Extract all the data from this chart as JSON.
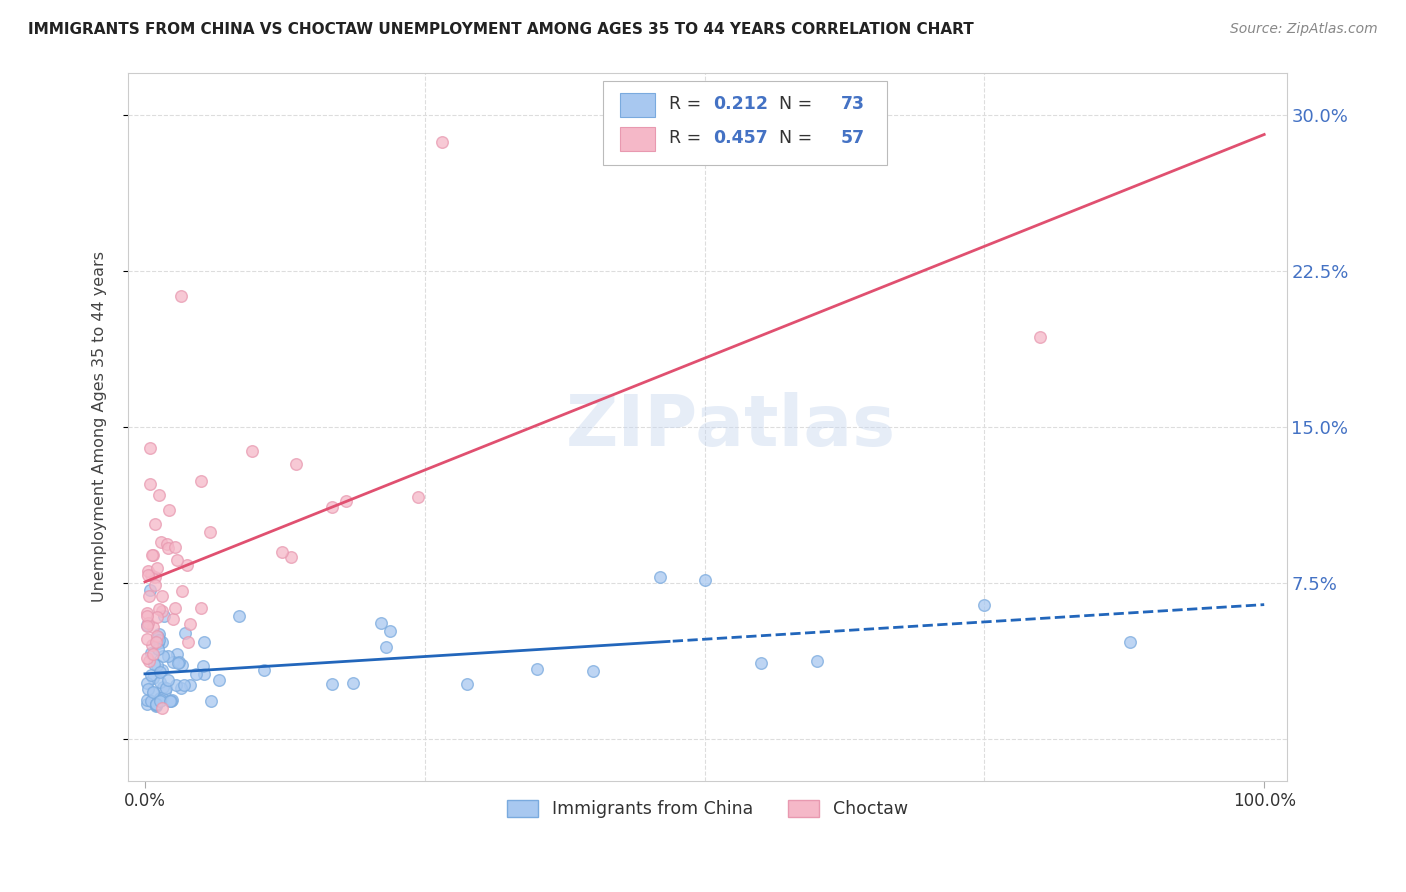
{
  "title": "IMMIGRANTS FROM CHINA VS CHOCTAW UNEMPLOYMENT AMONG AGES 35 TO 44 YEARS CORRELATION CHART",
  "source": "Source: ZipAtlas.com",
  "ylabel": "Unemployment Among Ages 35 to 44 years",
  "yticks": [
    0.0,
    0.075,
    0.15,
    0.225,
    0.3
  ],
  "ytick_labels": [
    "",
    "7.5%",
    "15.0%",
    "22.5%",
    "30.0%"
  ],
  "xlim": [
    0.0,
    1.0
  ],
  "ylim": [
    -0.02,
    0.32
  ],
  "blue_R": 0.212,
  "blue_N": 73,
  "pink_R": 0.457,
  "pink_N": 57,
  "blue_color": "#a8c8f0",
  "pink_color": "#f5b8c8",
  "blue_edge_color": "#7aaade",
  "pink_edge_color": "#e899b0",
  "blue_line_color": "#2266bb",
  "pink_line_color": "#e05070",
  "watermark": "ZIPatlas",
  "legend_label_blue": "Immigrants from China",
  "legend_label_pink": "Choctaw",
  "tick_color": "#4472c4",
  "title_color": "#222222",
  "source_color": "#888888",
  "grid_color": "#dddddd",
  "ylabel_color": "#444444"
}
